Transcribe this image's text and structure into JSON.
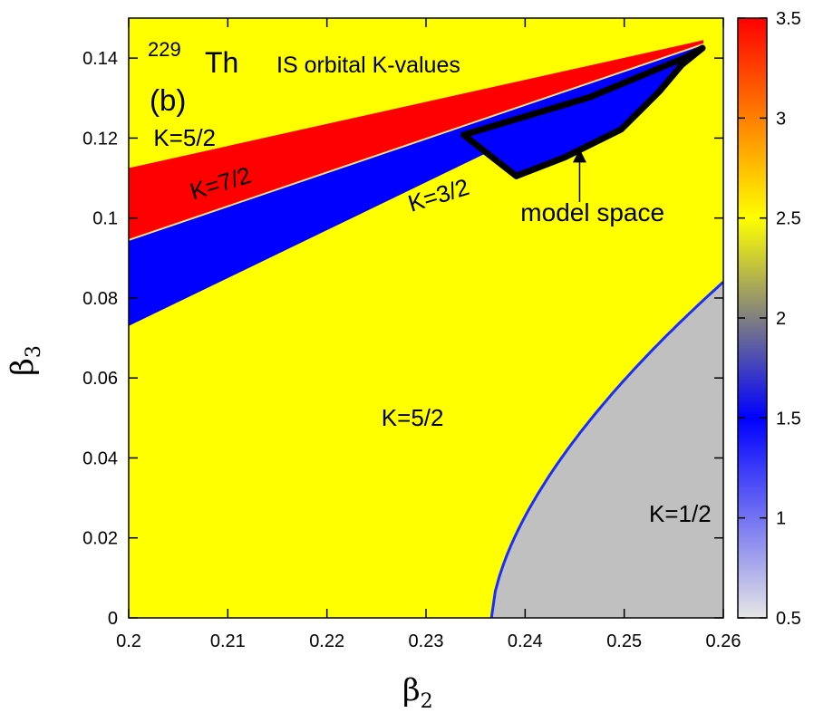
{
  "chart_data": {
    "type": "heatmap",
    "title": "IS orbital K-values",
    "nucleus_mass": "229",
    "nucleus_symbol": "Th",
    "panel_label": "(b)",
    "xlabel": "β",
    "xlabel_sub": "2",
    "ylabel": "β",
    "ylabel_sub": "3",
    "xlim": [
      0.2,
      0.26
    ],
    "ylim": [
      0,
      0.15
    ],
    "x_ticks": [
      0.2,
      0.21,
      0.22,
      0.23,
      0.24,
      0.25,
      0.26
    ],
    "x_tick_labels": [
      "0.2",
      "0.21",
      "0.22",
      "0.23",
      "0.24",
      "0.25",
      "0.26"
    ],
    "y_ticks": [
      0,
      0.02,
      0.04,
      0.06,
      0.08,
      0.1,
      0.12,
      0.14
    ],
    "y_tick_labels": [
      "0",
      "0.02",
      "0.04",
      "0.06",
      "0.08",
      "0.1",
      "0.12",
      "0.14"
    ],
    "colorbar": {
      "range": [
        0.5,
        3.5
      ],
      "ticks": [
        0.5,
        1,
        1.5,
        2,
        2.5,
        3,
        3.5
      ],
      "tick_labels": [
        "0.5",
        "1",
        "1.5",
        "2",
        "2.5",
        "3",
        "3.5"
      ],
      "stops": [
        {
          "value": 0.5,
          "color": "#e6e6e6"
        },
        {
          "value": 1.5,
          "color": "#0000ff"
        },
        {
          "value": 2.0,
          "color": "#808080"
        },
        {
          "value": 2.5,
          "color": "#ffff00"
        },
        {
          "value": 3.5,
          "color": "#ff0000"
        }
      ]
    },
    "regions": [
      {
        "name": "K=5/2",
        "value": 2.5,
        "color": "#ffff00",
        "description": "background"
      },
      {
        "name": "K=7/2",
        "value": 3.5,
        "color": "#ff0000",
        "boundary": [
          [
            0.2,
            0.0945
          ],
          [
            0.258,
            0.1435
          ],
          [
            0.258,
            0.1445
          ],
          [
            0.2,
            0.1125
          ]
        ]
      },
      {
        "name": "K=3/2",
        "value": 1.5,
        "color": "#0000ff",
        "boundary": [
          [
            0.2,
            0.073
          ],
          [
            0.258,
            0.1425
          ],
          [
            0.258,
            0.1435
          ],
          [
            0.2,
            0.0945
          ]
        ]
      },
      {
        "name": "K=1/2",
        "value": 0.5,
        "color": "#c0c0c0",
        "boundary_curve": {
          "b2_start": 0.2366,
          "b3_at_b2_max": 0.084,
          "b2_max": 0.26
        }
      }
    ],
    "labels": [
      {
        "text": "K=5/2",
        "x": 0.2025,
        "y": 0.118,
        "color": "#000000"
      },
      {
        "text": "K=7/2",
        "x": 0.2065,
        "y": 0.1045,
        "color": "#00e5ff",
        "rotate": -17
      },
      {
        "text": "K=3/2",
        "x": 0.2285,
        "y": 0.1015,
        "color": "#00e5ff",
        "rotate": -17
      },
      {
        "text": "K=5/2",
        "x": 0.2255,
        "y": 0.048,
        "color": "#000000"
      },
      {
        "text": "K=1/2",
        "x": 0.2525,
        "y": 0.024,
        "color": "#000000"
      }
    ],
    "model_space": {
      "label": "model space",
      "polygon": [
        [
          0.2338,
          0.1208
        ],
        [
          0.2391,
          0.1105
        ],
        [
          0.244,
          0.1152
        ],
        [
          0.2497,
          0.1222
        ],
        [
          0.2536,
          0.1318
        ],
        [
          0.2558,
          0.1383
        ],
        [
          0.2579,
          0.1425
        ],
        [
          0.2561,
          0.1401
        ],
        [
          0.2465,
          0.1302
        ]
      ],
      "fill": "#0000ff",
      "label_pos": [
        0.2468,
        0.0993
      ],
      "arrow_from": [
        0.2455,
        0.104
      ],
      "arrow_to": [
        0.2455,
        0.1165
      ]
    }
  }
}
